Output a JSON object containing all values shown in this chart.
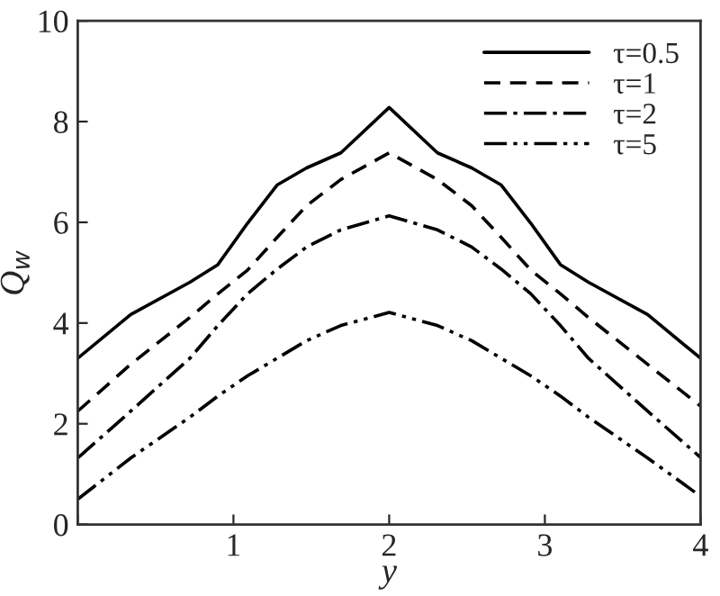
{
  "chart_data": {
    "type": "line",
    "xlabel": "y",
    "ylabel": "Q$_{w}$",
    "x": [
      0,
      0.34,
      0.72,
      0.9,
      1.09,
      1.28,
      1.47,
      1.69,
      2.0,
      2.31,
      2.53,
      2.72,
      2.91,
      3.1,
      3.28,
      3.66,
      4
    ],
    "series": [
      {
        "name": "τ=0.5",
        "color": "#000000",
        "line_style": "solid",
        "values": [
          3.3,
          4.17,
          4.81,
          5.16,
          5.98,
          6.74,
          7.08,
          7.38,
          8.28,
          7.38,
          7.08,
          6.74,
          5.98,
          5.16,
          4.81,
          4.17,
          3.3
        ]
      },
      {
        "name": "τ=1",
        "color": "#000000",
        "line_style": "dashed",
        "values": [
          2.25,
          3.18,
          4.11,
          4.58,
          5.05,
          5.7,
          6.33,
          6.85,
          7.38,
          6.85,
          6.33,
          5.7,
          5.05,
          4.58,
          4.11,
          3.18,
          2.35
        ]
      },
      {
        "name": "τ=2",
        "color": "#000000",
        "line_style": "dashdot",
        "values": [
          1.32,
          2.25,
          3.3,
          3.95,
          4.58,
          5.07,
          5.51,
          5.85,
          6.13,
          5.85,
          5.51,
          5.07,
          4.58,
          3.95,
          3.3,
          2.25,
          1.33
        ]
      },
      {
        "name": "τ=5",
        "color": "#000000",
        "line_style": "dashdotdot",
        "values": [
          0.5,
          1.32,
          2.13,
          2.55,
          2.95,
          3.3,
          3.65,
          3.95,
          4.21,
          3.95,
          3.65,
          3.3,
          2.95,
          2.55,
          2.13,
          1.32,
          0.56
        ]
      }
    ],
    "xlim": [
      0,
      4
    ],
    "ylim": [
      0,
      10
    ],
    "xticks": [
      {
        "value": 0,
        "label": null
      },
      1,
      2,
      3,
      4
    ],
    "yticks": [
      0,
      2,
      4,
      6,
      8,
      10
    ],
    "legend": "top right",
    "grid": false
  }
}
